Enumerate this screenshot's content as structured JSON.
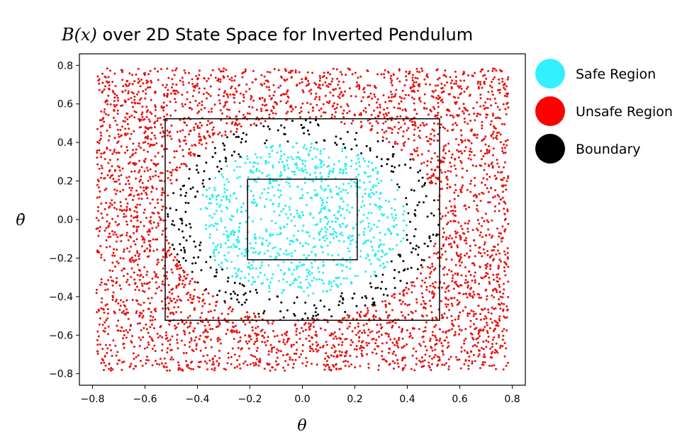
{
  "chart_data": {
    "type": "scatter",
    "title": {
      "math": "B(x)",
      "text": " over 2D State Space for Inverted Pendulum"
    },
    "xlabel": "θ",
    "ylabel": "θ̇",
    "xlim": [
      -0.85,
      0.85
    ],
    "ylim": [
      -0.86,
      0.86
    ],
    "xticks": [
      -0.8,
      -0.6,
      -0.4,
      -0.2,
      0.0,
      0.2,
      0.4,
      0.6,
      0.8
    ],
    "xtick_labels": [
      "−0.8",
      "−0.6",
      "−0.4",
      "−0.2",
      "0.0",
      "0.2",
      "0.4",
      "0.6",
      "0.8"
    ],
    "yticks": [
      0.8,
      0.6,
      0.4,
      0.2,
      0.0,
      -0.2,
      -0.4,
      -0.6,
      -0.8
    ],
    "ytick_labels": [
      "0.8",
      "0.6",
      "0.4",
      "0.2",
      "0.0",
      "−0.2",
      "−0.4",
      "−0.6",
      "−0.8"
    ],
    "grid": false,
    "legend_position": "outside-right-top",
    "sample_domain": {
      "x": [
        -0.785,
        0.785
      ],
      "y": [
        -0.785,
        0.785
      ]
    },
    "boundary_radius_range": [
      0.4,
      0.52
    ],
    "point_counts": {
      "safe": 900,
      "boundary": 320,
      "unsafe": 3600
    },
    "series": [
      {
        "name": "Safe Region",
        "color": "#22eef0",
        "legend_color": "#33f0ff"
      },
      {
        "name": "Unsafe Region",
        "color": "#e81010",
        "legend_color": "#ff0000"
      },
      {
        "name": "Boundary",
        "color": "#000000",
        "legend_color": "#000000"
      }
    ],
    "rectangles": [
      {
        "x": [
          -0.523,
          0.523
        ],
        "y": [
          -0.523,
          0.523
        ]
      },
      {
        "x": [
          -0.209,
          0.209
        ],
        "y": [
          -0.209,
          0.209
        ]
      }
    ]
  }
}
